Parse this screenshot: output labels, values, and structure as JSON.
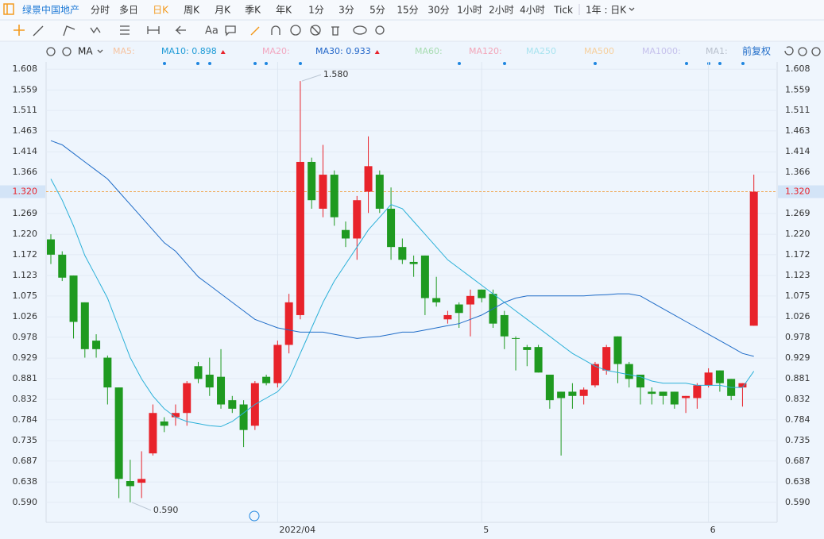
{
  "toolbar": {
    "stock": "绿景中国地产",
    "periods": [
      "分时",
      "多日",
      "日K",
      "周K",
      "月K",
      "季K",
      "年K",
      "1分",
      "3分",
      "5分",
      "15分",
      "30分",
      "1小时",
      "2小时",
      "4小时",
      "Tick"
    ],
    "active_period": "日K",
    "range": "1年 : 日K",
    "text_tool": "Aa",
    "ma_label": "MA",
    "adjust": "前复权"
  },
  "chart_data": {
    "type": "candlestick",
    "ma_legend": [
      {
        "text": "MA5:",
        "color": "#f6c3a0",
        "active": false
      },
      {
        "text": "MA10: 0.898",
        "color": "#1c9ad6",
        "active": true
      },
      {
        "text": "MA20:",
        "color": "#f2a7c0",
        "active": false
      },
      {
        "text": "MA30: 0.933",
        "color": "#1f64c8",
        "active": true
      },
      {
        "text": "MA60:",
        "color": "#a6dcb0",
        "active": false
      },
      {
        "text": "MA120:",
        "color": "#f3a5b8",
        "active": false
      },
      {
        "text": "MA250",
        "color": "#a7e3ef",
        "active": false
      },
      {
        "text": "MA500",
        "color": "#f6cf9c",
        "active": false
      },
      {
        "text": "MA1000:",
        "color": "#c5c0ec",
        "active": false
      },
      {
        "text": "MA1:",
        "color": "#b8c0cc",
        "active": false
      }
    ],
    "categories": [
      null,
      null,
      null,
      null,
      null,
      null,
      null,
      null,
      null,
      null,
      null,
      null,
      null,
      null,
      null,
      null,
      null,
      null,
      null,
      null,
      "2022/04",
      null,
      null,
      null,
      null,
      null,
      null,
      null,
      null,
      null,
      null,
      null,
      null,
      null,
      null,
      null,
      null,
      null,
      "5",
      null,
      null,
      null,
      null,
      null,
      null,
      null,
      null,
      null,
      null,
      null,
      null,
      null,
      null,
      null,
      null,
      null,
      null,
      null,
      "6",
      null,
      null,
      null,
      null
    ],
    "open": [
      1.208,
      1.172,
      1.123,
      1.06,
      0.97,
      0.93,
      0.86,
      0.64,
      0.636,
      0.705,
      0.78,
      0.79,
      0.8,
      0.91,
      0.89,
      0.885,
      0.83,
      0.82,
      0.77,
      0.885,
      0.87,
      0.96,
      1.03,
      1.39,
      1.28,
      1.36,
      1.23,
      1.21,
      1.32,
      1.36,
      1.28,
      1.19,
      1.155,
      1.17,
      1.07,
      1.02,
      1.055,
      1.055,
      1.09,
      1.08,
      1.03,
      0.976,
      0.955,
      0.955,
      0.89,
      0.85,
      0.85,
      0.84,
      0.865,
      0.9,
      0.98,
      0.915,
      0.89,
      0.85,
      0.85,
      0.85,
      0.835,
      0.835,
      0.865,
      0.9,
      0.88,
      0.86,
      1.005
    ],
    "high": [
      1.22,
      1.18,
      1.123,
      1.06,
      0.985,
      0.935,
      0.86,
      0.69,
      0.71,
      0.82,
      0.79,
      0.82,
      0.875,
      0.92,
      0.93,
      0.95,
      0.84,
      0.83,
      0.875,
      0.89,
      0.97,
      1.08,
      1.58,
      1.4,
      1.43,
      1.37,
      1.25,
      1.31,
      1.45,
      1.37,
      1.33,
      1.21,
      1.17,
      1.17,
      1.12,
      1.04,
      1.06,
      1.09,
      1.09,
      1.09,
      1.04,
      0.98,
      0.96,
      0.96,
      0.89,
      0.85,
      0.87,
      0.86,
      0.92,
      0.96,
      0.98,
      0.92,
      0.89,
      0.86,
      0.85,
      0.85,
      0.84,
      0.87,
      0.905,
      0.9,
      0.88,
      0.87,
      1.36
    ],
    "low": [
      1.15,
      1.11,
      0.975,
      0.93,
      0.93,
      0.82,
      0.6,
      0.59,
      0.6,
      0.7,
      0.755,
      0.77,
      0.77,
      0.87,
      0.84,
      0.81,
      0.8,
      0.72,
      0.76,
      0.865,
      0.86,
      0.94,
      1.02,
      1.28,
      1.26,
      1.24,
      1.19,
      1.16,
      1.27,
      1.27,
      1.16,
      1.15,
      1.12,
      1.03,
      1.05,
      1.01,
      1.0,
      0.98,
      1.06,
      1.0,
      0.95,
      0.9,
      0.91,
      0.895,
      0.81,
      0.7,
      0.81,
      0.82,
      0.86,
      0.89,
      0.87,
      0.86,
      0.82,
      0.82,
      0.82,
      0.81,
      0.8,
      0.81,
      0.86,
      0.85,
      0.83,
      0.815,
      1.005
    ],
    "close": [
      1.172,
      1.118,
      1.014,
      0.95,
      0.95,
      0.86,
      0.645,
      0.628,
      0.645,
      0.8,
      0.77,
      0.8,
      0.87,
      0.88,
      0.86,
      0.82,
      0.81,
      0.76,
      0.87,
      0.87,
      0.96,
      1.06,
      1.39,
      1.3,
      1.36,
      1.26,
      1.21,
      1.3,
      1.38,
      1.28,
      1.19,
      1.16,
      1.15,
      1.07,
      1.06,
      1.03,
      1.035,
      1.075,
      1.07,
      1.01,
      0.98,
      0.975,
      0.948,
      0.895,
      0.83,
      0.835,
      0.84,
      0.855,
      0.915,
      0.955,
      0.915,
      0.88,
      0.86,
      0.845,
      0.84,
      0.82,
      0.84,
      0.865,
      0.895,
      0.87,
      0.84,
      0.87,
      1.32
    ],
    "up_color": "#e8232b",
    "down_color": "#1f9a20",
    "ma_lines": [
      {
        "name": "MA10",
        "color": "#2ab0d8",
        "values": [
          1.35,
          1.3,
          1.24,
          1.17,
          1.12,
          1.07,
          1.0,
          0.93,
          0.88,
          0.84,
          0.81,
          0.79,
          0.78,
          0.775,
          0.77,
          0.768,
          0.78,
          0.8,
          0.82,
          0.835,
          0.85,
          0.88,
          0.94,
          1.0,
          1.06,
          1.11,
          1.15,
          1.19,
          1.23,
          1.26,
          1.29,
          1.28,
          1.25,
          1.22,
          1.19,
          1.16,
          1.14,
          1.12,
          1.1,
          1.08,
          1.06,
          1.04,
          1.02,
          1.0,
          0.98,
          0.96,
          0.94,
          0.925,
          0.91,
          0.9,
          0.895,
          0.89,
          0.885,
          0.875,
          0.87,
          0.87,
          0.87,
          0.865,
          0.865,
          0.865,
          0.86,
          0.86,
          0.898
        ]
      },
      {
        "name": "MA30",
        "color": "#1f6cc8",
        "values": [
          1.44,
          1.43,
          1.41,
          1.39,
          1.37,
          1.35,
          1.32,
          1.29,
          1.26,
          1.23,
          1.2,
          1.18,
          1.15,
          1.12,
          1.1,
          1.08,
          1.06,
          1.04,
          1.02,
          1.01,
          1.0,
          0.995,
          0.99,
          0.99,
          0.99,
          0.985,
          0.98,
          0.975,
          0.978,
          0.98,
          0.985,
          0.99,
          0.99,
          0.995,
          1.0,
          1.005,
          1.01,
          1.02,
          1.03,
          1.045,
          1.06,
          1.07,
          1.075,
          1.075,
          1.075,
          1.075,
          1.075,
          1.075,
          1.077,
          1.078,
          1.08,
          1.08,
          1.075,
          1.06,
          1.045,
          1.03,
          1.015,
          1.0,
          0.985,
          0.97,
          0.955,
          0.94,
          0.933
        ]
      }
    ],
    "annotations": [
      {
        "value": 1.58,
        "label": "1.580",
        "kind": "high"
      },
      {
        "value": 0.59,
        "label": "0.590",
        "kind": "low"
      }
    ],
    "last_price": {
      "value": 1.32,
      "label": "1.320",
      "color": "#f0a34a"
    },
    "ylim": [
      0.543,
      1.625
    ],
    "yticks": [
      1.608,
      1.559,
      1.511,
      1.463,
      1.414,
      1.366,
      1.269,
      {
        "value": 1.22,
        "label": "1.220"
      },
      1.172,
      1.123,
      1.075,
      1.026,
      0.978,
      0.929,
      0.881,
      0.832,
      0.784,
      0.735,
      0.687,
      0.638,
      {
        "value": 0.59,
        "label": "0.590"
      }
    ],
    "grid": true
  }
}
